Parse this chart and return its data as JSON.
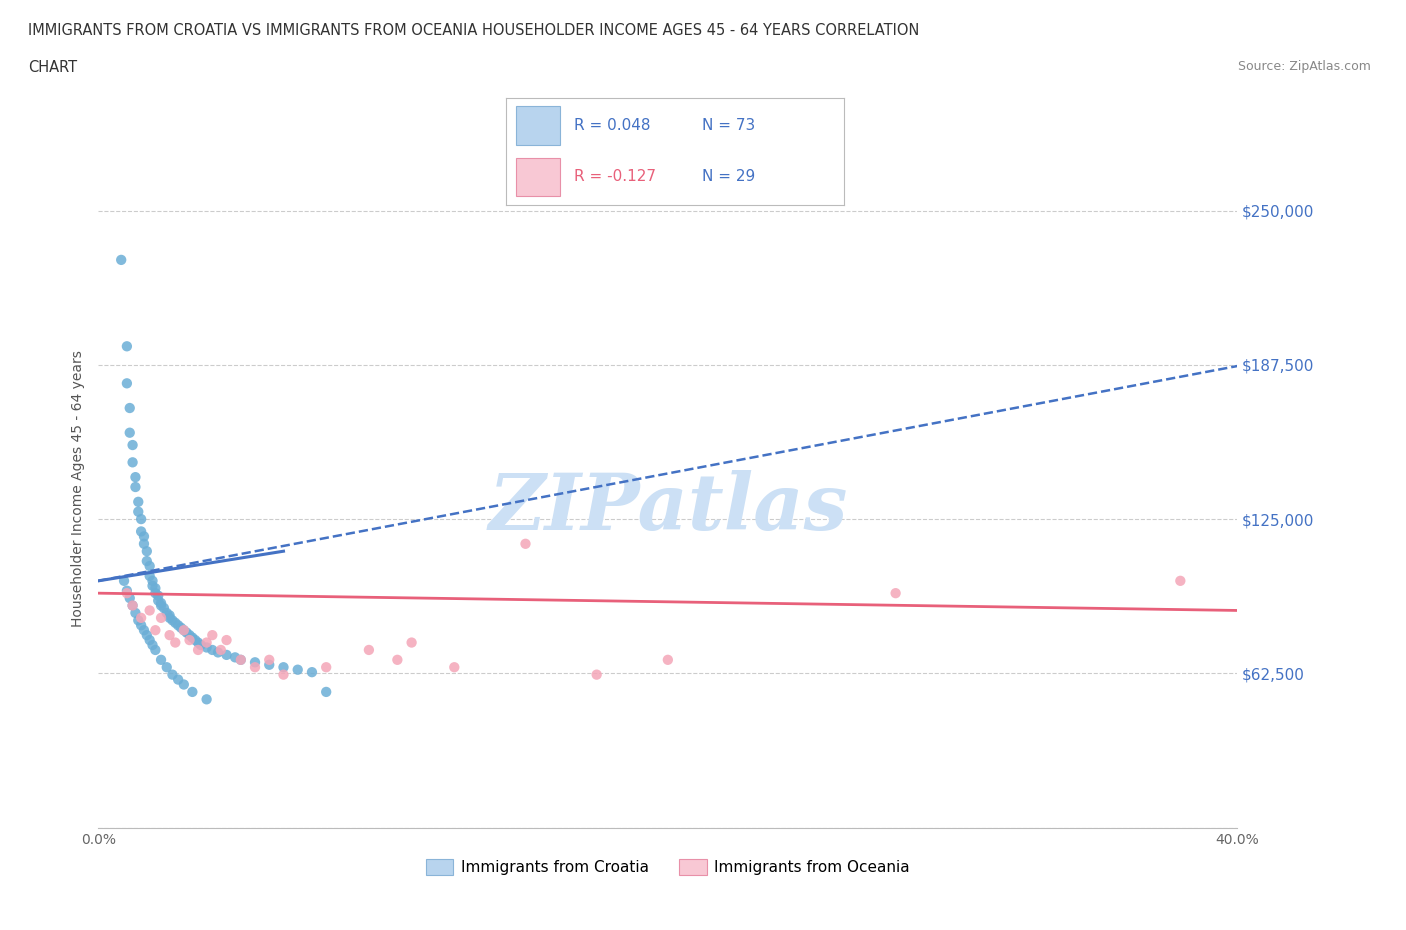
{
  "title_line1": "IMMIGRANTS FROM CROATIA VS IMMIGRANTS FROM OCEANIA HOUSEHOLDER INCOME AGES 45 - 64 YEARS CORRELATION",
  "title_line2": "CHART",
  "source": "Source: ZipAtlas.com",
  "ylabel": "Householder Income Ages 45 - 64 years",
  "xlim": [
    0.0,
    0.4
  ],
  "ylim": [
    0,
    275000
  ],
  "yticks": [
    0,
    62500,
    125000,
    187500,
    250000
  ],
  "ytick_labels": [
    "",
    "$62,500",
    "$125,000",
    "$187,500",
    "$250,000"
  ],
  "xticks": [
    0.0,
    0.05,
    0.1,
    0.15,
    0.2,
    0.25,
    0.3,
    0.35,
    0.4
  ],
  "xtick_labels": [
    "0.0%",
    "",
    "",
    "",
    "",
    "",
    "",
    "",
    "40.0%"
  ],
  "croatia_R": 0.048,
  "croatia_N": 73,
  "oceania_R": -0.127,
  "oceania_N": 29,
  "croatia_color": "#6baed6",
  "oceania_color": "#f4a6b8",
  "croatia_trend_color": "#4472c4",
  "oceania_trend_color": "#e8607a",
  "watermark": "ZIPatlas",
  "watermark_color": "#cce0f5",
  "background_color": "#ffffff",
  "grid_color": "#cccccc",
  "legend_box_color_croatia": "#b8d4ee",
  "legend_box_color_oceania": "#f8c8d4",
  "croatia_x": [
    0.008,
    0.01,
    0.01,
    0.011,
    0.011,
    0.012,
    0.012,
    0.013,
    0.013,
    0.014,
    0.014,
    0.015,
    0.015,
    0.016,
    0.016,
    0.017,
    0.017,
    0.018,
    0.018,
    0.019,
    0.019,
    0.02,
    0.02,
    0.021,
    0.021,
    0.022,
    0.022,
    0.023,
    0.024,
    0.025,
    0.025,
    0.026,
    0.027,
    0.028,
    0.029,
    0.03,
    0.031,
    0.032,
    0.033,
    0.034,
    0.035,
    0.036,
    0.038,
    0.04,
    0.042,
    0.045,
    0.048,
    0.05,
    0.055,
    0.06,
    0.065,
    0.07,
    0.075,
    0.08,
    0.009,
    0.01,
    0.011,
    0.012,
    0.013,
    0.014,
    0.015,
    0.016,
    0.017,
    0.018,
    0.019,
    0.02,
    0.022,
    0.024,
    0.026,
    0.028,
    0.03,
    0.033,
    0.038
  ],
  "croatia_y": [
    230000,
    195000,
    180000,
    170000,
    160000,
    155000,
    148000,
    142000,
    138000,
    132000,
    128000,
    125000,
    120000,
    118000,
    115000,
    112000,
    108000,
    106000,
    102000,
    100000,
    98000,
    97000,
    95000,
    94000,
    92000,
    91000,
    90000,
    89000,
    87000,
    86000,
    85000,
    84000,
    83000,
    82000,
    81000,
    80000,
    79000,
    78000,
    77000,
    76000,
    75000,
    74000,
    73000,
    72000,
    71000,
    70000,
    69000,
    68000,
    67000,
    66000,
    65000,
    64000,
    63000,
    55000,
    100000,
    96000,
    93000,
    90000,
    87000,
    84000,
    82000,
    80000,
    78000,
    76000,
    74000,
    72000,
    68000,
    65000,
    62000,
    60000,
    58000,
    55000,
    52000
  ],
  "oceania_x": [
    0.01,
    0.012,
    0.015,
    0.018,
    0.02,
    0.022,
    0.025,
    0.027,
    0.03,
    0.032,
    0.035,
    0.038,
    0.04,
    0.043,
    0.045,
    0.05,
    0.055,
    0.06,
    0.065,
    0.08,
    0.095,
    0.105,
    0.11,
    0.125,
    0.15,
    0.175,
    0.2,
    0.28,
    0.38
  ],
  "oceania_y": [
    95000,
    90000,
    85000,
    88000,
    80000,
    85000,
    78000,
    75000,
    80000,
    76000,
    72000,
    75000,
    78000,
    72000,
    76000,
    68000,
    65000,
    68000,
    62000,
    65000,
    72000,
    68000,
    75000,
    65000,
    115000,
    62000,
    68000,
    95000,
    100000
  ]
}
